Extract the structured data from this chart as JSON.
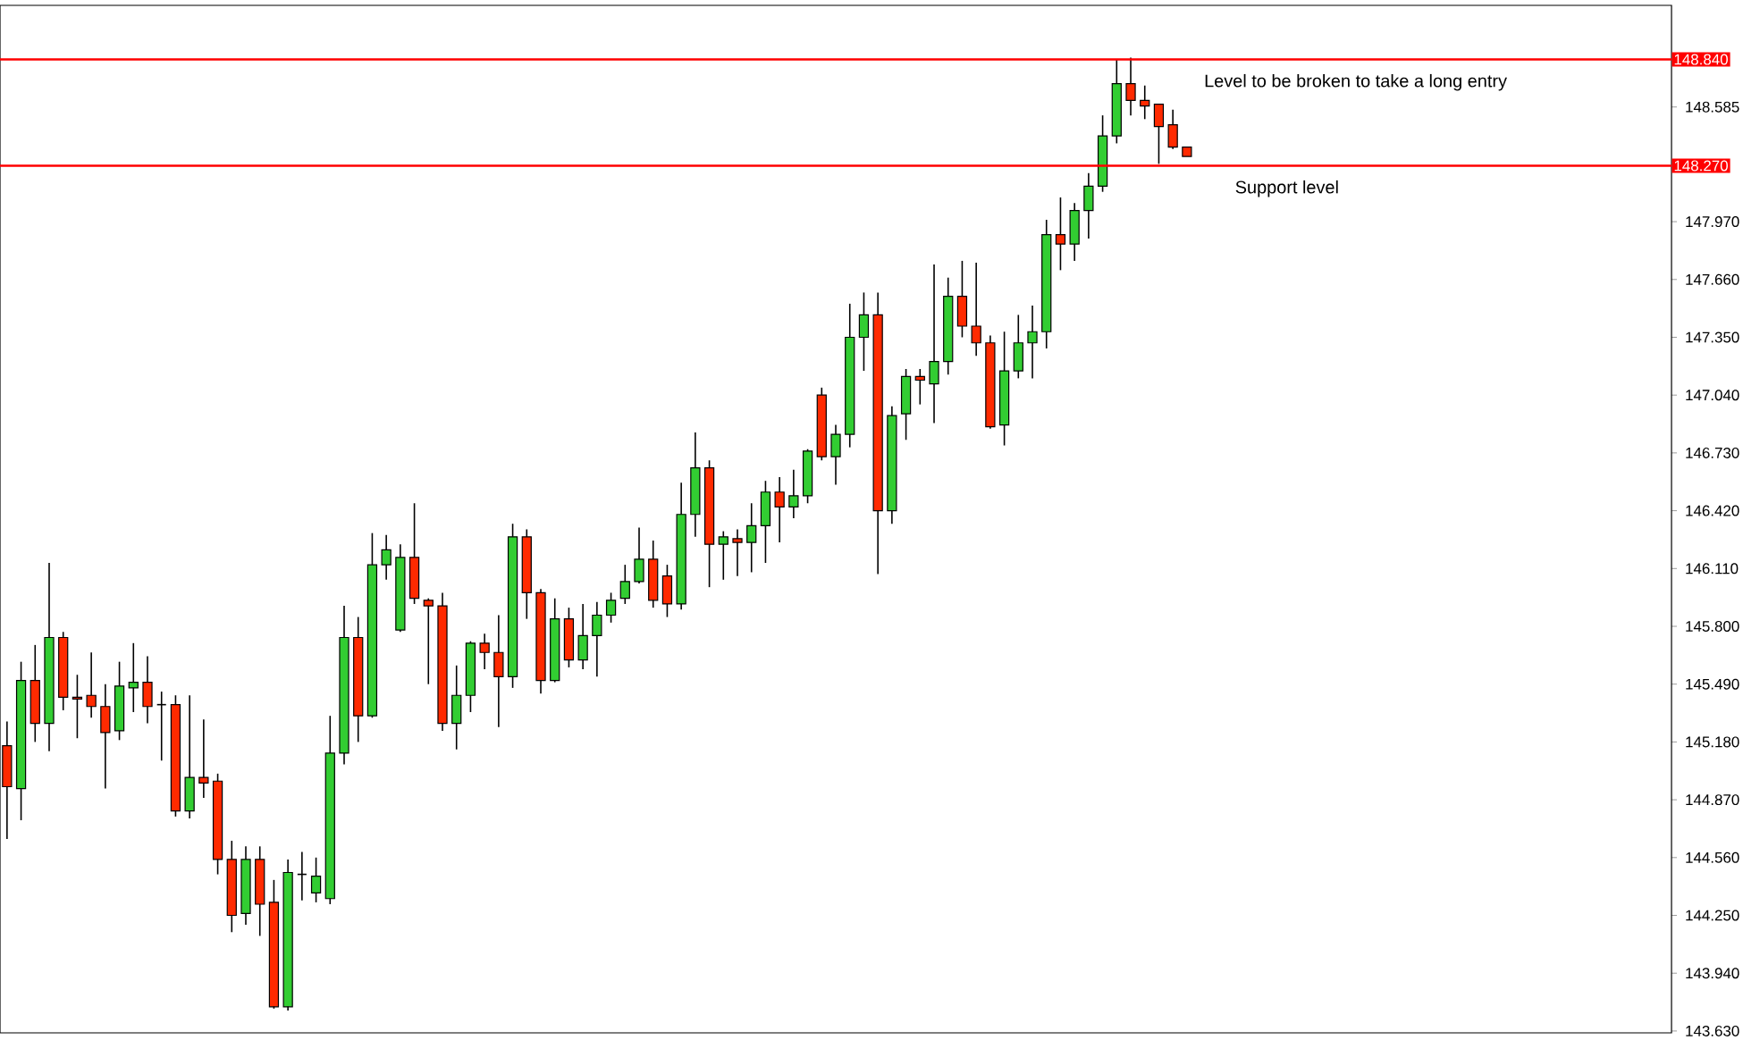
{
  "chart_data": {
    "type": "candlestick",
    "categories": [
      null,
      null,
      null,
      null,
      null,
      null,
      null,
      null,
      null,
      null,
      null,
      null,
      null,
      null,
      null,
      null,
      null,
      null,
      null,
      null,
      null,
      null,
      null,
      null,
      null,
      null,
      null,
      null,
      null,
      null,
      null,
      null,
      null,
      null,
      null,
      null,
      null,
      null,
      null,
      null,
      null,
      null,
      null,
      null,
      null,
      null,
      null,
      null,
      null,
      null,
      null,
      null,
      null,
      null,
      null,
      null,
      null,
      null,
      null,
      null,
      null,
      null,
      null,
      null,
      null,
      null,
      null,
      null,
      null,
      null,
      null,
      null,
      null,
      null,
      null,
      null,
      null,
      null,
      null,
      null,
      null,
      null,
      null,
      null,
      null,
      null,
      null,
      null,
      null,
      null,
      null,
      null,
      null,
      null,
      null,
      null,
      null,
      null,
      null,
      null,
      null,
      null,
      null,
      null,
      null,
      null,
      null,
      null,
      null,
      null,
      null,
      null,
      null,
      null,
      null,
      null,
      null,
      null,
      null
    ],
    "ohlc": [
      [
        145.16,
        145.29,
        144.66,
        144.94
      ],
      [
        144.93,
        145.61,
        144.76,
        145.51
      ],
      [
        145.51,
        145.7,
        145.18,
        145.28
      ],
      [
        145.28,
        146.14,
        145.13,
        145.74
      ],
      [
        145.74,
        145.77,
        145.35,
        145.42
      ],
      [
        145.42,
        145.54,
        145.2,
        145.41
      ],
      [
        145.43,
        145.66,
        145.31,
        145.37
      ],
      [
        145.37,
        145.49,
        144.93,
        145.23
      ],
      [
        145.24,
        145.61,
        145.19,
        145.48
      ],
      [
        145.47,
        145.71,
        145.34,
        145.5
      ],
      [
        145.5,
        145.64,
        145.28,
        145.37
      ],
      [
        145.38,
        145.45,
        145.08,
        145.38
      ],
      [
        145.38,
        145.43,
        144.78,
        144.81
      ],
      [
        144.81,
        145.43,
        144.77,
        144.99
      ],
      [
        144.99,
        145.3,
        144.88,
        144.96
      ],
      [
        144.97,
        145.01,
        144.47,
        144.55
      ],
      [
        144.55,
        144.65,
        144.16,
        144.25
      ],
      [
        144.26,
        144.62,
        144.2,
        144.55
      ],
      [
        144.55,
        144.62,
        144.14,
        144.31
      ],
      [
        144.32,
        144.44,
        143.75,
        143.76
      ],
      [
        143.76,
        144.55,
        143.74,
        144.48
      ],
      [
        144.47,
        144.59,
        144.33,
        144.47
      ],
      [
        144.37,
        144.56,
        144.32,
        144.46
      ],
      [
        144.34,
        145.32,
        144.31,
        145.12
      ],
      [
        145.12,
        145.91,
        145.06,
        145.74
      ],
      [
        145.74,
        145.85,
        145.18,
        145.32
      ],
      [
        145.32,
        146.3,
        145.31,
        146.13
      ],
      [
        146.13,
        146.29,
        146.05,
        146.21
      ],
      [
        145.78,
        146.24,
        145.77,
        146.17
      ],
      [
        146.17,
        146.46,
        145.92,
        145.95
      ],
      [
        145.94,
        145.95,
        145.49,
        145.91
      ],
      [
        145.91,
        145.98,
        145.24,
        145.28
      ],
      [
        145.28,
        145.59,
        145.14,
        145.43
      ],
      [
        145.43,
        145.72,
        145.34,
        145.71
      ],
      [
        145.71,
        145.76,
        145.57,
        145.66
      ],
      [
        145.66,
        145.86,
        145.26,
        145.53
      ],
      [
        145.53,
        146.35,
        145.47,
        146.28
      ],
      [
        146.28,
        146.32,
        145.84,
        145.98
      ],
      [
        145.98,
        146.0,
        145.44,
        145.51
      ],
      [
        145.51,
        145.95,
        145.5,
        145.84
      ],
      [
        145.84,
        145.9,
        145.58,
        145.62
      ],
      [
        145.62,
        145.92,
        145.57,
        145.75
      ],
      [
        145.75,
        145.93,
        145.53,
        145.86
      ],
      [
        145.86,
        145.98,
        145.82,
        145.94
      ],
      [
        145.95,
        146.13,
        145.92,
        146.04
      ],
      [
        146.04,
        146.33,
        146.03,
        146.16
      ],
      [
        146.16,
        146.26,
        145.9,
        145.94
      ],
      [
        146.07,
        146.13,
        145.85,
        145.92
      ],
      [
        145.92,
        146.57,
        145.89,
        146.4
      ],
      [
        146.4,
        146.84,
        146.28,
        146.65
      ],
      [
        146.65,
        146.69,
        146.01,
        146.24
      ],
      [
        146.24,
        146.31,
        146.05,
        146.28
      ],
      [
        146.27,
        146.32,
        146.07,
        146.25
      ],
      [
        146.25,
        146.46,
        146.09,
        146.34
      ],
      [
        146.34,
        146.58,
        146.14,
        146.52
      ],
      [
        146.52,
        146.6,
        146.25,
        146.44
      ],
      [
        146.44,
        146.64,
        146.38,
        146.5
      ],
      [
        146.5,
        146.75,
        146.46,
        146.74
      ],
      [
        147.04,
        147.08,
        146.69,
        146.71
      ],
      [
        146.71,
        146.88,
        146.56,
        146.83
      ],
      [
        146.83,
        147.53,
        146.76,
        147.35
      ],
      [
        147.35,
        147.59,
        147.17,
        147.47
      ],
      [
        147.47,
        147.59,
        146.08,
        146.42
      ],
      [
        146.42,
        146.98,
        146.35,
        146.93
      ],
      [
        146.94,
        147.18,
        146.8,
        147.14
      ],
      [
        147.14,
        147.18,
        146.99,
        147.12
      ],
      [
        147.1,
        147.74,
        146.89,
        147.22
      ],
      [
        147.22,
        147.67,
        147.15,
        147.57
      ],
      [
        147.57,
        147.76,
        147.35,
        147.41
      ],
      [
        147.41,
        147.75,
        147.25,
        147.32
      ],
      [
        147.32,
        147.36,
        146.86,
        146.87
      ],
      [
        146.88,
        147.38,
        146.77,
        147.17
      ],
      [
        147.17,
        147.47,
        147.13,
        147.32
      ],
      [
        147.32,
        147.52,
        147.13,
        147.38
      ],
      [
        147.38,
        147.98,
        147.29,
        147.9
      ],
      [
        147.9,
        148.1,
        147.71,
        147.85
      ],
      [
        147.85,
        148.07,
        147.76,
        148.03
      ],
      [
        148.03,
        148.23,
        147.88,
        148.16
      ],
      [
        148.16,
        148.54,
        148.13,
        148.43
      ],
      [
        148.43,
        148.84,
        148.39,
        148.71
      ],
      [
        148.71,
        148.85,
        148.54,
        148.62
      ],
      [
        148.62,
        148.7,
        148.52,
        148.59
      ],
      [
        148.6,
        148.6,
        148.28,
        148.48
      ],
      [
        148.49,
        148.57,
        148.36,
        148.37
      ],
      [
        148.37,
        148.37,
        148.32,
        148.32
      ],
      null,
      null,
      null,
      null,
      null,
      null,
      null,
      null,
      null,
      null,
      null,
      null,
      null,
      null,
      null,
      null,
      null,
      null,
      null,
      null,
      null,
      null,
      null,
      null,
      null,
      null,
      null,
      null,
      null,
      null,
      null,
      null,
      null,
      null
    ],
    "colors": [
      "#ff2a00",
      "#32cd32",
      "#ff2a00",
      "#32cd32",
      "#ff2a00",
      "#ff2a00",
      "#ff2a00",
      "#ff2a00",
      "#32cd32",
      "#32cd32",
      "#ff2a00",
      "#000000",
      "#ff2a00",
      "#32cd32",
      "#ff2a00",
      "#ff2a00",
      "#ff2a00",
      "#32cd32",
      "#ff2a00",
      "#ff2a00",
      "#32cd32",
      "#000000",
      "#32cd32",
      "#32cd32",
      "#32cd32",
      "#ff2a00",
      "#32cd32",
      "#32cd32",
      "#32cd32",
      "#ff2a00",
      "#ff2a00",
      "#ff2a00",
      "#32cd32",
      "#32cd32",
      "#ff2a00",
      "#ff2a00",
      "#32cd32",
      "#ff2a00",
      "#ff2a00",
      "#32cd32",
      "#ff2a00",
      "#32cd32",
      "#32cd32",
      "#32cd32",
      "#32cd32",
      "#32cd32",
      "#ff2a00",
      "#ff2a00",
      "#32cd32",
      "#32cd32",
      "#ff2a00",
      "#32cd32",
      "#ff2a00",
      "#32cd32",
      "#32cd32",
      "#ff2a00",
      "#32cd32",
      "#32cd32",
      "#ff2a00",
      "#32cd32",
      "#32cd32",
      "#32cd32",
      "#ff2a00",
      "#32cd32",
      "#32cd32",
      "#ff2a00",
      "#32cd32",
      "#32cd32",
      "#ff2a00",
      "#ff2a00",
      "#ff2a00",
      "#32cd32",
      "#32cd32",
      "#32cd32",
      "#32cd32",
      "#ff2a00",
      "#32cd32",
      "#32cd32",
      "#32cd32",
      "#32cd32",
      "#ff2a00",
      "#ff2a00",
      "#ff2a00",
      "#ff2a00",
      "#ff2a00",
      null,
      null,
      null,
      null,
      null,
      null,
      null,
      null,
      null,
      null,
      null,
      null,
      null,
      null,
      null,
      null,
      null,
      null,
      null,
      null,
      null,
      null,
      null,
      null,
      null,
      null,
      null,
      null,
      null,
      null,
      null,
      null,
      null,
      null
    ],
    "ylim": [
      143.62,
      149.13
    ],
    "yticks": [
      {
        "value": 143.63,
        "label": "143.630"
      },
      {
        "value": 143.94,
        "label": "143.940"
      },
      {
        "value": 144.25,
        "label": "144.250"
      },
      {
        "value": 144.56,
        "label": "144.560"
      },
      {
        "value": 144.87,
        "label": "144.870"
      },
      {
        "value": 145.18,
        "label": "145.180"
      },
      {
        "value": 145.49,
        "label": "145.490"
      },
      {
        "value": 145.8,
        "label": "145.800"
      },
      {
        "value": 146.11,
        "label": "146.110"
      },
      {
        "value": 146.42,
        "label": "146.420"
      },
      {
        "value": 146.73,
        "label": "146.730"
      },
      {
        "value": 147.04,
        "label": "147.040"
      },
      {
        "value": 147.35,
        "label": "147.350"
      },
      {
        "value": 147.66,
        "label": "147.660"
      },
      {
        "value": 147.97,
        "label": "147.970"
      },
      {
        "value": 148.585,
        "label": "148.585"
      }
    ],
    "tick_labels": "y",
    "ref_lines": [
      {
        "axis": "y",
        "value": 148.84,
        "label": "148.840",
        "color": "#ff0000"
      },
      {
        "axis": "y",
        "value": 148.27,
        "label": "148.270",
        "color": "#ff0000"
      }
    ],
    "annotations": [
      {
        "text": "Level to be broken to take a long entry",
        "y": 148.84
      },
      {
        "text": "Support level",
        "y": 148.27
      }
    ]
  }
}
